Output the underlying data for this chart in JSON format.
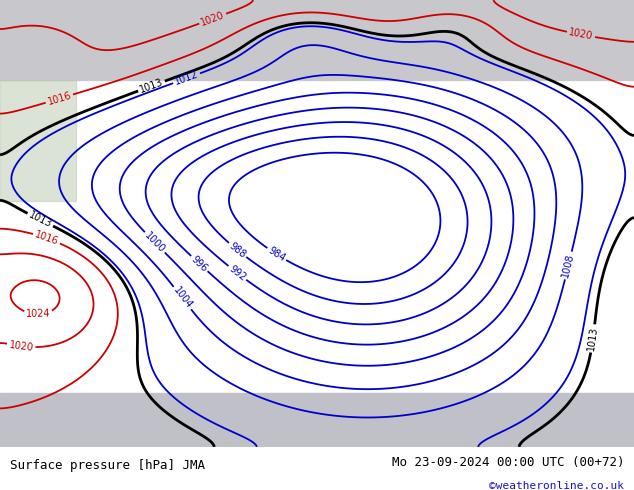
{
  "title_left": "Surface pressure [hPa] JMA",
  "title_right": "Mo 23-09-2024 00:00 UTC (00+72)",
  "credit": "©weatheronline.co.uk",
  "bg_color_green": "#aacfaa",
  "bg_color_gray_top": "#c8c8cc",
  "bg_color_gray_bot": "#c0c0c8",
  "text_color_left": "#000000",
  "text_color_right": "#000000",
  "text_color_credit": "#1414cc",
  "color_blue": "#0000cc",
  "color_black": "#000000",
  "color_red": "#cc0000",
  "levels_blue": [
    984,
    988,
    992,
    996,
    1000,
    1004,
    1008,
    1012
  ],
  "levels_black": [
    1013
  ],
  "levels_red": [
    1016,
    1020,
    1024
  ],
  "figsize": [
    6.34,
    4.9
  ],
  "dpi": 100
}
